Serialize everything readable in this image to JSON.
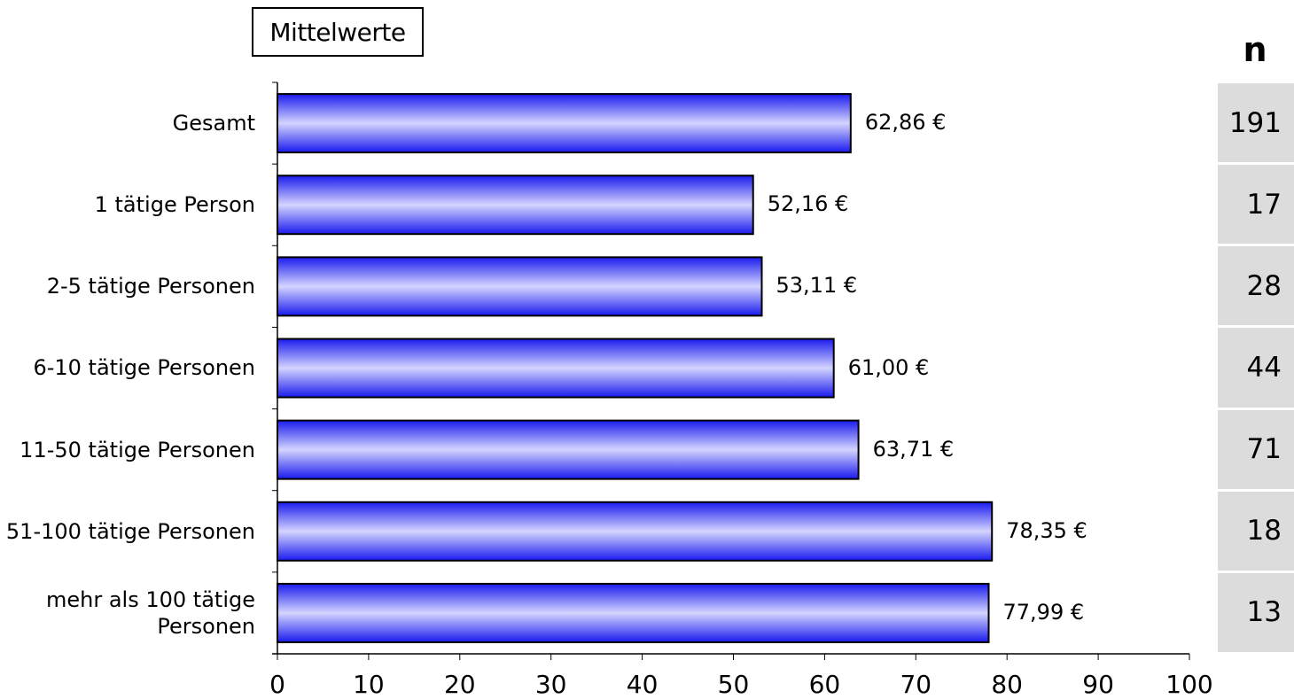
{
  "chart_data": {
    "type": "bar",
    "orientation": "horizontal",
    "legend_box": "Mittelwerte",
    "categories": [
      "Gesamt",
      "1 tätige Person",
      "2-5 tätige Personen",
      "6-10 tätige Personen",
      "11-50 tätige Personen",
      "51-100 tätige Personen",
      "mehr als 100 tätige Personen"
    ],
    "values": [
      62.86,
      52.16,
      53.11,
      61.0,
      63.71,
      78.35,
      77.99
    ],
    "value_labels": [
      "62,86 €",
      "52,16 €",
      "53,11 €",
      "61,00 €",
      "63,71 €",
      "78,35 €",
      "77,99 €"
    ],
    "n_header": "n",
    "n_values": [
      "191",
      "17",
      "28",
      "44",
      "71",
      "18",
      "13"
    ],
    "xlim": [
      0,
      100
    ],
    "x_ticks": [
      0,
      10,
      20,
      30,
      40,
      50,
      60,
      70,
      80,
      90,
      100
    ],
    "grid": false,
    "colors": {
      "bar_edge": "#1a1aee",
      "bar_center": "#d4d4ff",
      "bar_outline": "#000000",
      "n_cell_bg": "#dcdcdc"
    }
  }
}
